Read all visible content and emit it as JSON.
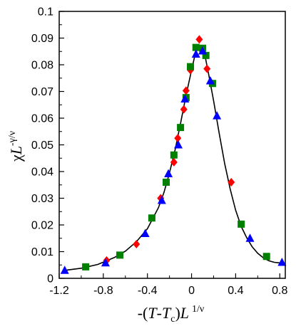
{
  "chart_data": {
    "type": "scatter",
    "title": "",
    "xlabel": {
      "prefix": "-(",
      "var1": "T",
      "mid": "-",
      "var2": "T",
      "var2_sub": "c",
      "close": ")",
      "var3": "L",
      "sup": "1/ν"
    },
    "ylabel": {
      "base": "χ",
      "var": "L",
      "sup": "-γ/ν"
    },
    "xlim": [
      -1.2,
      0.85
    ],
    "ylim": [
      0,
      0.1
    ],
    "x_ticks": [
      -1.2,
      -0.8,
      -0.4,
      0,
      0.4,
      0.8
    ],
    "x_tick_labels": [
      "-1.2",
      "-0.8",
      "-0.4",
      "0",
      "0.4",
      "0.8"
    ],
    "y_ticks": [
      0,
      0.01,
      0.02,
      0.03,
      0.04,
      0.05,
      0.06,
      0.07,
      0.08,
      0.09,
      0.1
    ],
    "y_tick_labels": [
      "0",
      "0.01",
      "0.02",
      "0.03",
      "0.04",
      "0.05",
      "0.06",
      "0.07",
      "0.08",
      "0.09",
      "0.1"
    ],
    "grid": false,
    "legend": "none",
    "series": [
      {
        "marker": "diamond",
        "color": "#ff0000",
        "points": [
          [
            -0.77,
            0.0067
          ],
          [
            -0.5,
            0.0128
          ],
          [
            -0.28,
            0.03
          ],
          [
            -0.16,
            0.0435
          ],
          [
            -0.125,
            0.0525
          ],
          [
            -0.07,
            0.0633
          ],
          [
            -0.05,
            0.0703
          ],
          [
            -0.01,
            0.078
          ],
          [
            0.07,
            0.0895
          ],
          [
            0.09,
            0.0858
          ],
          [
            0.14,
            0.0785
          ],
          [
            0.36,
            0.036
          ]
        ]
      },
      {
        "marker": "square",
        "color": "#008000",
        "points": [
          [
            -0.96,
            0.0043
          ],
          [
            -0.65,
            0.0087
          ],
          [
            -0.36,
            0.0226
          ],
          [
            -0.23,
            0.036
          ],
          [
            -0.16,
            0.0462
          ],
          [
            -0.1,
            0.0565
          ],
          [
            -0.05,
            0.0677
          ],
          [
            -0.01,
            0.0793
          ],
          [
            0.04,
            0.0865
          ],
          [
            0.1,
            0.0862
          ],
          [
            0.13,
            0.0835
          ],
          [
            0.19,
            0.073
          ],
          [
            0.45,
            0.0203
          ],
          [
            0.68,
            0.0082
          ]
        ]
      },
      {
        "marker": "triangle",
        "color": "#0000ff",
        "points": [
          [
            -1.15,
            0.003
          ],
          [
            -0.78,
            0.0058
          ],
          [
            -0.42,
            0.0168
          ],
          [
            -0.27,
            0.0292
          ],
          [
            -0.21,
            0.0392
          ],
          [
            -0.12,
            0.05
          ],
          [
            -0.06,
            0.0672
          ],
          [
            0.04,
            0.084
          ],
          [
            0.1,
            0.0852
          ],
          [
            0.17,
            0.074
          ],
          [
            0.23,
            0.0609
          ],
          [
            0.53,
            0.015
          ],
          [
            0.82,
            0.006
          ]
        ]
      }
    ],
    "fit_curve": {
      "color": "#000000",
      "points": [
        [
          -1.15,
          0.003
        ],
        [
          -1.0,
          0.0038
        ],
        [
          -0.85,
          0.0052
        ],
        [
          -0.7,
          0.0078
        ],
        [
          -0.6,
          0.0102
        ],
        [
          -0.5,
          0.0137
        ],
        [
          -0.4,
          0.0186
        ],
        [
          -0.3,
          0.0265
        ],
        [
          -0.25,
          0.0322
        ],
        [
          -0.2,
          0.0395
        ],
        [
          -0.15,
          0.048
        ],
        [
          -0.1,
          0.058
        ],
        [
          -0.05,
          0.0685
        ],
        [
          0.0,
          0.078
        ],
        [
          0.03,
          0.0835
        ],
        [
          0.06,
          0.0868
        ],
        [
          0.09,
          0.0872
        ],
        [
          0.12,
          0.0838
        ],
        [
          0.15,
          0.0775
        ],
        [
          0.2,
          0.0665
        ],
        [
          0.25,
          0.0545
        ],
        [
          0.3,
          0.043
        ],
        [
          0.35,
          0.0335
        ],
        [
          0.4,
          0.0255
        ],
        [
          0.45,
          0.0195
        ],
        [
          0.5,
          0.0152
        ],
        [
          0.55,
          0.0118
        ],
        [
          0.6,
          0.0094
        ],
        [
          0.65,
          0.0077
        ],
        [
          0.7,
          0.0066
        ],
        [
          0.75,
          0.006
        ],
        [
          0.8,
          0.0058
        ],
        [
          0.82,
          0.0059
        ]
      ]
    }
  }
}
